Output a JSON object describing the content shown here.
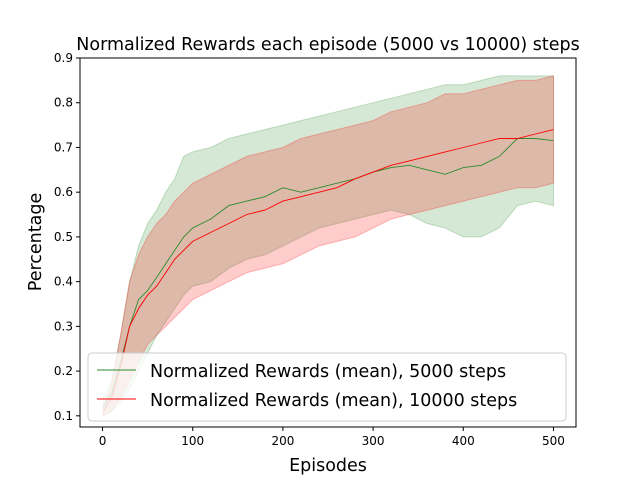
{
  "chart_data": {
    "type": "line",
    "title": "Normalized Rewards each episode (5000 vs 10000) steps",
    "xlabel": "Episodes",
    "ylabel": "Percentage",
    "xlim": [
      -25,
      525
    ],
    "ylim": [
      0.075,
      0.9
    ],
    "xticks": [
      0,
      100,
      200,
      300,
      400,
      500
    ],
    "yticks": [
      0.1,
      0.2,
      0.3,
      0.4,
      0.5,
      0.6,
      0.7,
      0.8,
      0.9
    ],
    "x": [
      1,
      10,
      20,
      30,
      40,
      50,
      60,
      70,
      80,
      90,
      100,
      120,
      140,
      160,
      180,
      200,
      220,
      240,
      260,
      280,
      300,
      320,
      340,
      360,
      380,
      400,
      420,
      440,
      460,
      480,
      500
    ],
    "legend": {
      "position": "bottom-left"
    },
    "grid": false,
    "series": [
      {
        "name": "Normalized Rewards (mean), 5000 steps",
        "color": "#2e8b2e",
        "mean": [
          0.12,
          0.15,
          0.22,
          0.3,
          0.36,
          0.38,
          0.41,
          0.44,
          0.47,
          0.5,
          0.52,
          0.54,
          0.57,
          0.58,
          0.59,
          0.61,
          0.6,
          0.61,
          0.62,
          0.63,
          0.645,
          0.655,
          0.66,
          0.65,
          0.64,
          0.655,
          0.66,
          0.68,
          0.72,
          0.72,
          0.715
        ],
        "upper": [
          0.14,
          0.18,
          0.28,
          0.4,
          0.48,
          0.53,
          0.56,
          0.6,
          0.63,
          0.68,
          0.69,
          0.7,
          0.72,
          0.73,
          0.74,
          0.75,
          0.76,
          0.77,
          0.78,
          0.79,
          0.8,
          0.81,
          0.82,
          0.83,
          0.84,
          0.84,
          0.85,
          0.86,
          0.86,
          0.86,
          0.86
        ],
        "lower": [
          0.1,
          0.11,
          0.13,
          0.16,
          0.2,
          0.24,
          0.28,
          0.31,
          0.34,
          0.37,
          0.39,
          0.4,
          0.43,
          0.45,
          0.46,
          0.48,
          0.5,
          0.52,
          0.53,
          0.54,
          0.55,
          0.56,
          0.55,
          0.53,
          0.52,
          0.5,
          0.5,
          0.52,
          0.57,
          0.58,
          0.57
        ]
      },
      {
        "name": "Normalized Rewards (mean), 10000 steps",
        "color": "#ff0000",
        "mean": [
          0.11,
          0.14,
          0.21,
          0.3,
          0.34,
          0.37,
          0.39,
          0.42,
          0.45,
          0.47,
          0.49,
          0.51,
          0.53,
          0.55,
          0.56,
          0.58,
          0.59,
          0.6,
          0.61,
          0.63,
          0.645,
          0.66,
          0.67,
          0.68,
          0.69,
          0.7,
          0.71,
          0.72,
          0.72,
          0.73,
          0.74
        ],
        "upper": [
          0.12,
          0.17,
          0.28,
          0.4,
          0.46,
          0.5,
          0.53,
          0.55,
          0.58,
          0.6,
          0.62,
          0.64,
          0.66,
          0.68,
          0.69,
          0.7,
          0.72,
          0.73,
          0.74,
          0.75,
          0.76,
          0.78,
          0.79,
          0.8,
          0.82,
          0.82,
          0.83,
          0.84,
          0.85,
          0.85,
          0.86
        ],
        "lower": [
          0.1,
          0.11,
          0.14,
          0.18,
          0.22,
          0.26,
          0.28,
          0.3,
          0.32,
          0.34,
          0.36,
          0.38,
          0.4,
          0.42,
          0.43,
          0.44,
          0.46,
          0.48,
          0.49,
          0.5,
          0.52,
          0.54,
          0.55,
          0.56,
          0.57,
          0.58,
          0.59,
          0.6,
          0.61,
          0.61,
          0.62
        ]
      }
    ]
  }
}
